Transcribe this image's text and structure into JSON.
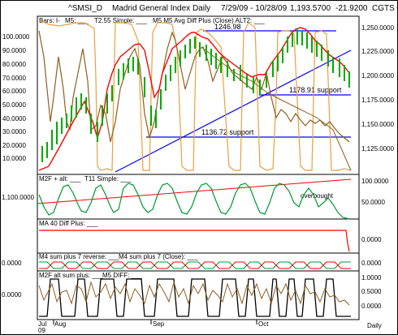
{
  "header": {
    "symbol": "^SMSI_D",
    "name": "Madrid General Index Daily",
    "date_range": "7/29/09 - 10/28/09",
    "last_value": "1,193.5700",
    "change": "-21.9200",
    "copyright": "CGTS ©"
  },
  "main_panel": {
    "legend": [
      "Bars: I-",
      "M5: ___",
      "T2.55 Simple: ___",
      "M5 M5 Avg Diff Plus (Close) ALT2: ___"
    ],
    "left_ticks": [
      "100.0000",
      "90.0000",
      "80.0000",
      "70.0000",
      "60.0000",
      "50.0000",
      "40.0000",
      "30.0000",
      "20.0000",
      "10.0000"
    ],
    "right_ticks": [
      "1,250.0000",
      "1,225.0000",
      "1,200.0000",
      "1,175.0000",
      "1,150.0000",
      "1,125.0000"
    ],
    "annotations": {
      "top_level": "1246.98",
      "support_1": "1178.91 support",
      "support_2": "1136.72 support"
    }
  },
  "panel_m2f": {
    "legend": [
      "M2F + alt: ___",
      "T11 Simple: ___"
    ],
    "left_tick": "1,100.0000",
    "right_ticks": [
      "100.0000",
      "50.0000"
    ],
    "annotation": "overbought"
  },
  "panel_ma40": {
    "legend": [
      "MA 40 Diff Plus: ___"
    ],
    "right_tick": "0.0000"
  },
  "panel_m4": {
    "legend": [
      "M4 sum plus 7 reverse: ___",
      "M4 sum plus 7 (Close): ___"
    ],
    "left_tick": "0.0000",
    "right_tick": "0.0000"
  },
  "panel_m2f_alt": {
    "legend": [
      "M2F alt sum plus: ___",
      "M5 DIFF: ___"
    ],
    "left_tick": "0.0000",
    "right_ticks": [
      "1.0000",
      "0.5000",
      "0.0000"
    ]
  },
  "x_axis": {
    "labels": [
      "Jul",
      "Aug",
      "Sep",
      "Oct"
    ],
    "year": "09",
    "period": "Daily"
  },
  "colors": {
    "bars": "#00aa00",
    "price_line": "#ff0000",
    "trend": "#0000ff",
    "osc": "#e8a040",
    "brown": "#8b6020",
    "green": "#009933"
  }
}
